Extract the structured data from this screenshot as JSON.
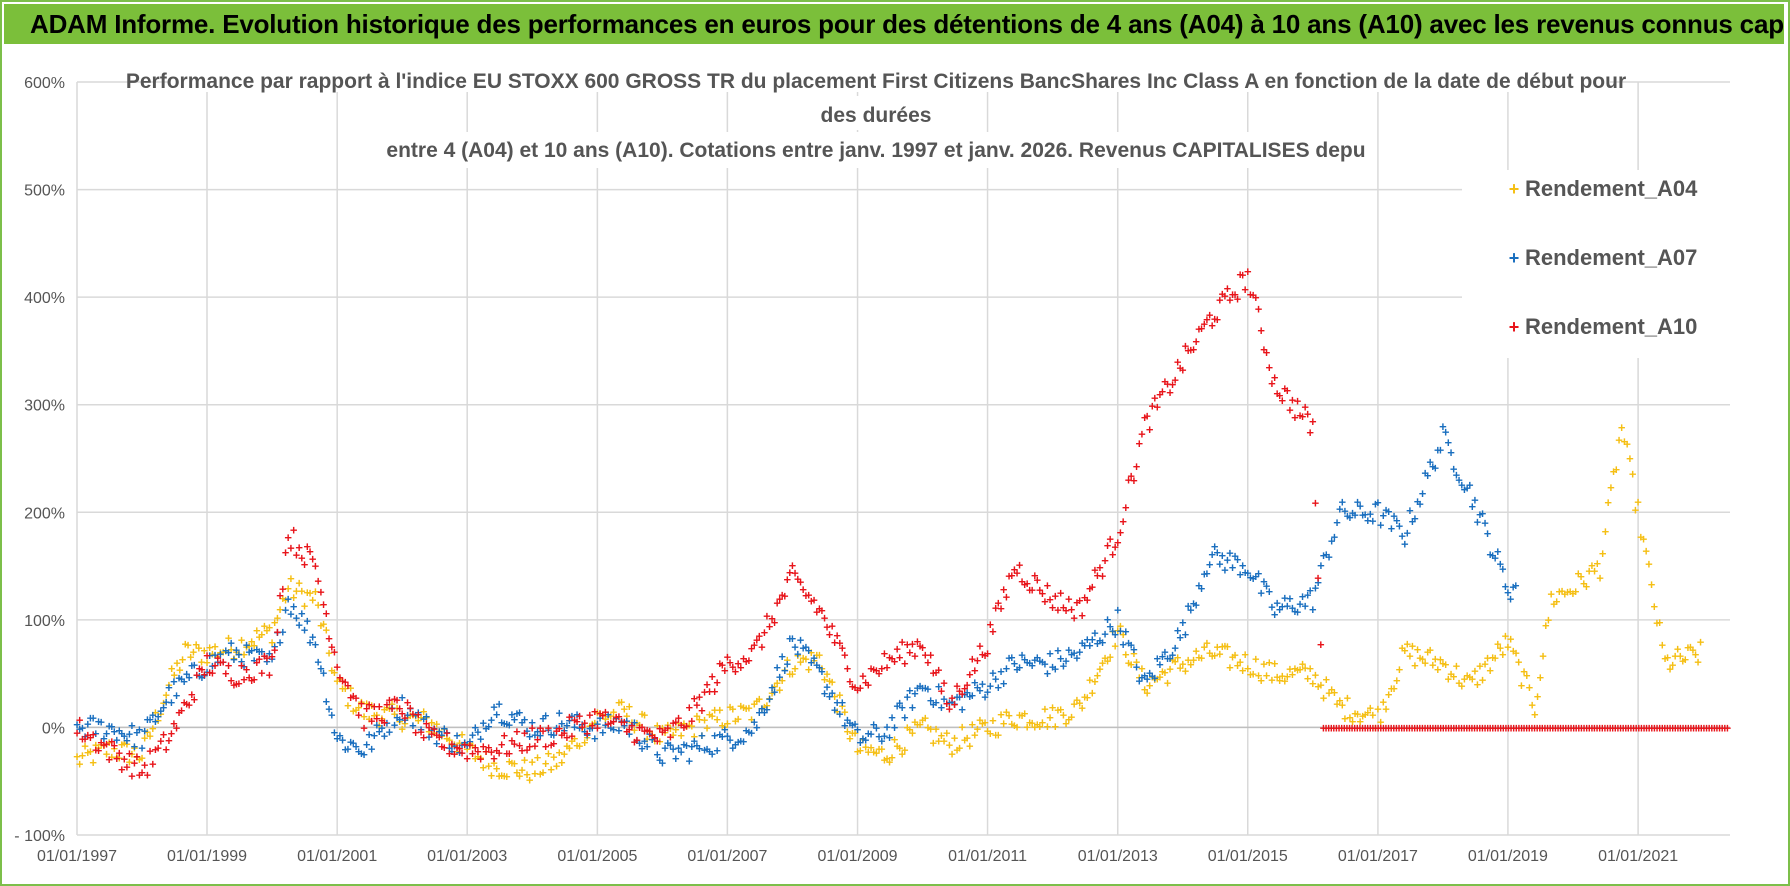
{
  "banner": {
    "text": "ADAM Informe. Evolution historique des performances en euros pour des détentions de 4 ans (A04) à 10 ans (A10) avec les revenus connus capitalisés"
  },
  "colors": {
    "banner_bg": "#7bbf3a",
    "frame": "#7cbf4a",
    "A04": "#f5bf14",
    "A07": "#1a6fbf",
    "A10": "#e8151b",
    "grid": "#d9d9d9"
  },
  "chart_data": {
    "type": "scatter",
    "title_lines": [
      "Performance par rapport à l'indice EU STOXX 600 GROSS TR  du placement First Citizens BancShares Inc Class A en fonction de la date de début pour",
      "des durées",
      "entre 4 (A04) et 10 ans (A10).  Cotations entre janv. 1997 et janv. 2026. Revenus CAPITALISES depu"
    ],
    "xlabel": "",
    "ylabel": "",
    "x_range": [
      "1997-01-01",
      "2022-06-01"
    ],
    "x_ticks": [
      "01/01/1997",
      "01/01/1999",
      "01/01/2001",
      "01/01/2003",
      "01/01/2005",
      "01/01/2007",
      "01/01/2009",
      "01/01/2011",
      "01/01/2013",
      "01/01/2015",
      "01/01/2017",
      "01/01/2019",
      "01/01/2021"
    ],
    "y_range": [
      -100,
      600
    ],
    "y_ticks": [
      "- 100%",
      "0%",
      "100%",
      "200%",
      "300%",
      "400%",
      "500%",
      "600%"
    ],
    "y_tick_values": [
      -100,
      0,
      100,
      200,
      300,
      400,
      500,
      600
    ],
    "grid": true,
    "legend_position": "top-right",
    "marker": "+",
    "series": [
      {
        "name": "Rendement_A04",
        "color": "#f5bf14",
        "points": [
          [
            "1997-01-01",
            -30
          ],
          [
            "1997-07-01",
            -20
          ],
          [
            "1998-01-01",
            -25
          ],
          [
            "1998-06-01",
            40
          ],
          [
            "1998-09-01",
            70
          ],
          [
            "1999-01-01",
            70
          ],
          [
            "1999-06-01",
            75
          ],
          [
            "2000-01-01",
            90
          ],
          [
            "2000-04-01",
            130
          ],
          [
            "2000-09-01",
            120
          ],
          [
            "2001-01-01",
            40
          ],
          [
            "2001-06-01",
            15
          ],
          [
            "2002-01-01",
            10
          ],
          [
            "2002-06-01",
            5
          ],
          [
            "2003-01-01",
            -20
          ],
          [
            "2003-06-01",
            -35
          ],
          [
            "2004-01-01",
            -40
          ],
          [
            "2004-06-01",
            -30
          ],
          [
            "2005-01-01",
            10
          ],
          [
            "2005-06-01",
            15
          ],
          [
            "2006-01-01",
            -10
          ],
          [
            "2006-06-01",
            0
          ],
          [
            "2007-01-01",
            10
          ],
          [
            "2007-06-01",
            15
          ],
          [
            "2008-01-01",
            60
          ],
          [
            "2008-06-01",
            65
          ],
          [
            "2009-01-01",
            -20
          ],
          [
            "2009-06-01",
            -25
          ],
          [
            "2010-01-01",
            0
          ],
          [
            "2010-06-01",
            -15
          ],
          [
            "2011-01-01",
            0
          ],
          [
            "2011-06-01",
            10
          ],
          [
            "2012-01-01",
            10
          ],
          [
            "2012-06-01",
            20
          ],
          [
            "2013-01-01",
            90
          ],
          [
            "2013-06-01",
            40
          ],
          [
            "2014-01-01",
            60
          ],
          [
            "2014-06-01",
            70
          ],
          [
            "2015-01-01",
            60
          ],
          [
            "2015-06-01",
            50
          ],
          [
            "2016-01-01",
            50
          ],
          [
            "2016-06-01",
            20
          ],
          [
            "2017-01-01",
            10
          ],
          [
            "2017-06-01",
            70
          ],
          [
            "2018-01-01",
            60
          ],
          [
            "2018-06-01",
            40
          ],
          [
            "2019-01-01",
            80
          ],
          [
            "2019-06-01",
            20
          ],
          [
            "2019-09-01",
            120
          ],
          [
            "2020-01-01",
            130
          ],
          [
            "2020-06-01",
            150
          ],
          [
            "2020-10-01",
            280
          ],
          [
            "2021-01-01",
            200
          ],
          [
            "2021-06-01",
            60
          ],
          [
            "2022-01-01",
            70
          ]
        ]
      },
      {
        "name": "Rendement_A07",
        "color": "#1a6fbf",
        "points": [
          [
            "1997-01-01",
            0
          ],
          [
            "1997-07-01",
            0
          ],
          [
            "1998-01-01",
            -10
          ],
          [
            "1998-06-01",
            30
          ],
          [
            "1999-01-01",
            60
          ],
          [
            "1999-06-01",
            70
          ],
          [
            "2000-01-01",
            60
          ],
          [
            "2000-04-01",
            120
          ],
          [
            "2000-09-01",
            80
          ],
          [
            "2001-01-01",
            -10
          ],
          [
            "2001-06-01",
            -20
          ],
          [
            "2002-01-01",
            20
          ],
          [
            "2002-06-01",
            0
          ],
          [
            "2003-01-01",
            -20
          ],
          [
            "2003-06-01",
            20
          ],
          [
            "2004-01-01",
            0
          ],
          [
            "2004-06-01",
            5
          ],
          [
            "2005-01-01",
            0
          ],
          [
            "2005-06-01",
            5
          ],
          [
            "2006-01-01",
            -25
          ],
          [
            "2006-06-01",
            -20
          ],
          [
            "2007-01-01",
            -10
          ],
          [
            "2007-06-01",
            0
          ],
          [
            "2008-01-01",
            80
          ],
          [
            "2008-06-01",
            50
          ],
          [
            "2009-01-01",
            -10
          ],
          [
            "2009-06-01",
            -5
          ],
          [
            "2010-01-01",
            40
          ],
          [
            "2010-06-01",
            20
          ],
          [
            "2011-01-01",
            40
          ],
          [
            "2011-06-01",
            60
          ],
          [
            "2012-01-01",
            60
          ],
          [
            "2012-06-01",
            70
          ],
          [
            "2013-01-01",
            100
          ],
          [
            "2013-06-01",
            40
          ],
          [
            "2014-01-01",
            90
          ],
          [
            "2014-06-01",
            160
          ],
          [
            "2015-01-01",
            150
          ],
          [
            "2015-06-01",
            110
          ],
          [
            "2016-01-01",
            120
          ],
          [
            "2016-06-01",
            200
          ],
          [
            "2017-01-01",
            200
          ],
          [
            "2017-06-01",
            180
          ],
          [
            "2018-01-01",
            270
          ],
          [
            "2018-06-01",
            220
          ],
          [
            "2019-01-01",
            130
          ],
          [
            "2019-03-01",
            130
          ]
        ]
      },
      {
        "name": "Rendement_A10",
        "color": "#e8151b",
        "points": [
          [
            "1997-01-01",
            0
          ],
          [
            "1997-07-01",
            -20
          ],
          [
            "1998-01-01",
            -40
          ],
          [
            "1998-06-01",
            -10
          ],
          [
            "1999-01-01",
            60
          ],
          [
            "1999-06-01",
            50
          ],
          [
            "2000-01-01",
            60
          ],
          [
            "2000-04-01",
            180
          ],
          [
            "2000-09-01",
            150
          ],
          [
            "2001-01-01",
            60
          ],
          [
            "2001-06-01",
            10
          ],
          [
            "2002-01-01",
            20
          ],
          [
            "2002-06-01",
            -10
          ],
          [
            "2003-01-01",
            -20
          ],
          [
            "2003-06-01",
            -20
          ],
          [
            "2004-01-01",
            -10
          ],
          [
            "2004-06-01",
            -5
          ],
          [
            "2005-01-01",
            10
          ],
          [
            "2005-06-01",
            0
          ],
          [
            "2006-01-01",
            -10
          ],
          [
            "2006-06-01",
            10
          ],
          [
            "2007-01-01",
            60
          ],
          [
            "2007-06-01",
            70
          ],
          [
            "2008-01-01",
            140
          ],
          [
            "2008-06-01",
            110
          ],
          [
            "2009-01-01",
            40
          ],
          [
            "2009-06-01",
            60
          ],
          [
            "2010-01-01",
            80
          ],
          [
            "2010-06-01",
            20
          ],
          [
            "2011-01-01",
            80
          ],
          [
            "2011-06-01",
            150
          ],
          [
            "2012-01-01",
            120
          ],
          [
            "2012-06-01",
            110
          ],
          [
            "2013-01-01",
            180
          ],
          [
            "2013-06-01",
            280
          ],
          [
            "2014-01-01",
            340
          ],
          [
            "2014-06-01",
            380
          ],
          [
            "2015-01-01",
            420
          ],
          [
            "2015-06-01",
            320
          ],
          [
            "2016-01-01",
            280
          ],
          [
            "2016-03-01",
            0
          ],
          [
            "2022-06-01",
            0
          ]
        ]
      }
    ]
  }
}
